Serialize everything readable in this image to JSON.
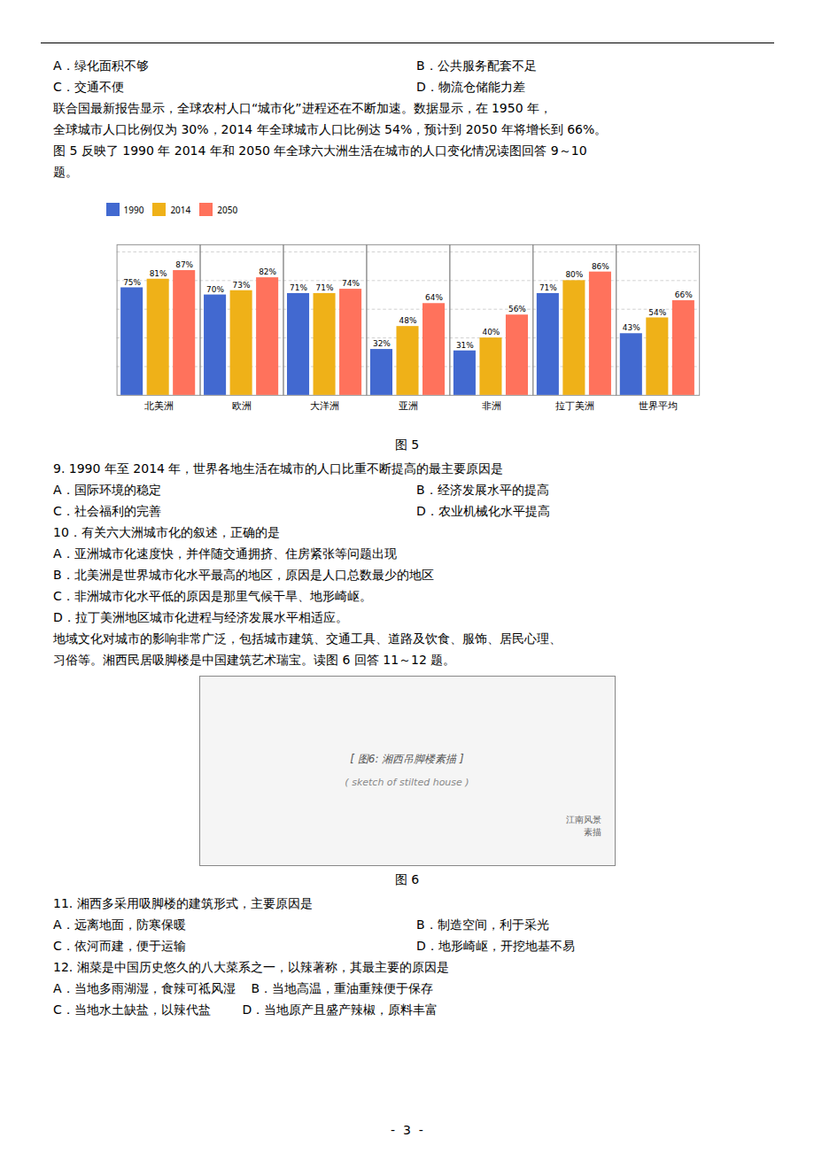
{
  "chart_data": {
    "type": "bar",
    "title": "图 5",
    "categories": [
      "北美洲",
      "欧洲",
      "大洋洲",
      "亚洲",
      "非洲",
      "拉丁美洲",
      "世界平均"
    ],
    "series": [
      {
        "name": "1990",
        "values": [
          75,
          70,
          71,
          32,
          31,
          71,
          43
        ],
        "value_labels": [
          "75%",
          "70%",
          "71%",
          "32%",
          "31%",
          "71%",
          "43%"
        ]
      },
      {
        "name": "2014",
        "values": [
          81,
          73,
          71,
          48,
          40,
          80,
          54
        ],
        "value_labels": [
          "81%",
          "73%",
          "71%",
          "48%",
          "40%",
          "80%",
          "54%"
        ]
      },
      {
        "name": "2050",
        "values": [
          87,
          82,
          74,
          64,
          56,
          86,
          66
        ],
        "value_labels": [
          "87%",
          "82%",
          "74%",
          "64%",
          "56%",
          "86%",
          "66%"
        ]
      }
    ],
    "ylim": [
      0,
      105
    ],
    "yticks": [
      20,
      40,
      60,
      80,
      100
    ],
    "grid": true,
    "legend": "top",
    "data_labels": true,
    "tick_labels": "x",
    "annotations": [
      [
        "A．绿化面积不够",
        "B．公共服务配套不足"
      ],
      [
        "C．交通不便",
        "D．物流仓储能力差"
      ],
      [
        "联合国最新报告显示，全球农村人口“城市化”进程还在不断加速。数据显示，在 1950 年，"
      ],
      [
        "全球城市人口比例仅为 30%，2014 年全球城市人口比例达 54%，预计到 2050 年将增长到 66%。"
      ],
      [
        "图 5 反映了 1990 年 2014 年和 2050 年全球六大洲生活在城市的人口变化情况读图回答 9～10"
      ],
      [
        "题。"
      ],
      [
        "9. 1990 年至 2014 年，世界各地生活在城市的人口比重不断提高的最主要原因是"
      ],
      [
        "A．国际环境的稳定",
        "B．经济发展水平的提高"
      ],
      [
        "C．社会福利的完善",
        "D．农业机械化水平提高"
      ],
      [
        "10．有关六大洲城市化的叙述，正确的是"
      ],
      [
        "A．亚洲城市化速度快，并伴随交通拥挤、住房紧张等问题出现"
      ],
      [
        "B．北美洲是世界城市化水平最高的地区，原因是人口总数最少的地区"
      ],
      [
        "C．非洲城市化水平低的原因是那里气候干旱、地形崎岖。"
      ],
      [
        "D．拉丁美洲地区城市化进程与经济发展水平相适应。"
      ],
      [
        "地域文化对城市的影响非常广泛，包括城市建筑、交通工具、道路及饮食、服饰、居民心理、"
      ],
      [
        "习俗等。湘西民居吸脚楼是中国建筑艺术瑞宝。读图 6 回答 11～12 题。"
      ],
      [
        "[ 图6: 湘西吊脚楼素描 ]"
      ],
      [
        "( sketch of stilted house )"
      ],
      [
        "江南风景\n素描"
      ],
      [
        "图 6"
      ],
      [
        "11. 湘西多采用吸脚楼的建筑形式，主要原因是"
      ],
      [
        "A．远离地面，防寒保暖",
        "B．制造空间，利于采光"
      ],
      [
        "C．依河而建，便于运输",
        "D．地形崎岖，开挖地基不易"
      ],
      [
        "12. 湘菜是中国历史悠久的八大菜系之一，以辣著称，其最主要的原因是"
      ],
      [
        "A．当地多雨湖湿，食辣可祗风湿    B．当地高温，重油重辣便于保存"
      ],
      [
        "C．当地水土缺盐，以辣代盐        D．当地原产且盛产辣椒，原料丰富"
      ],
      [
        "-  3  -"
      ]
    ]
  }
}
